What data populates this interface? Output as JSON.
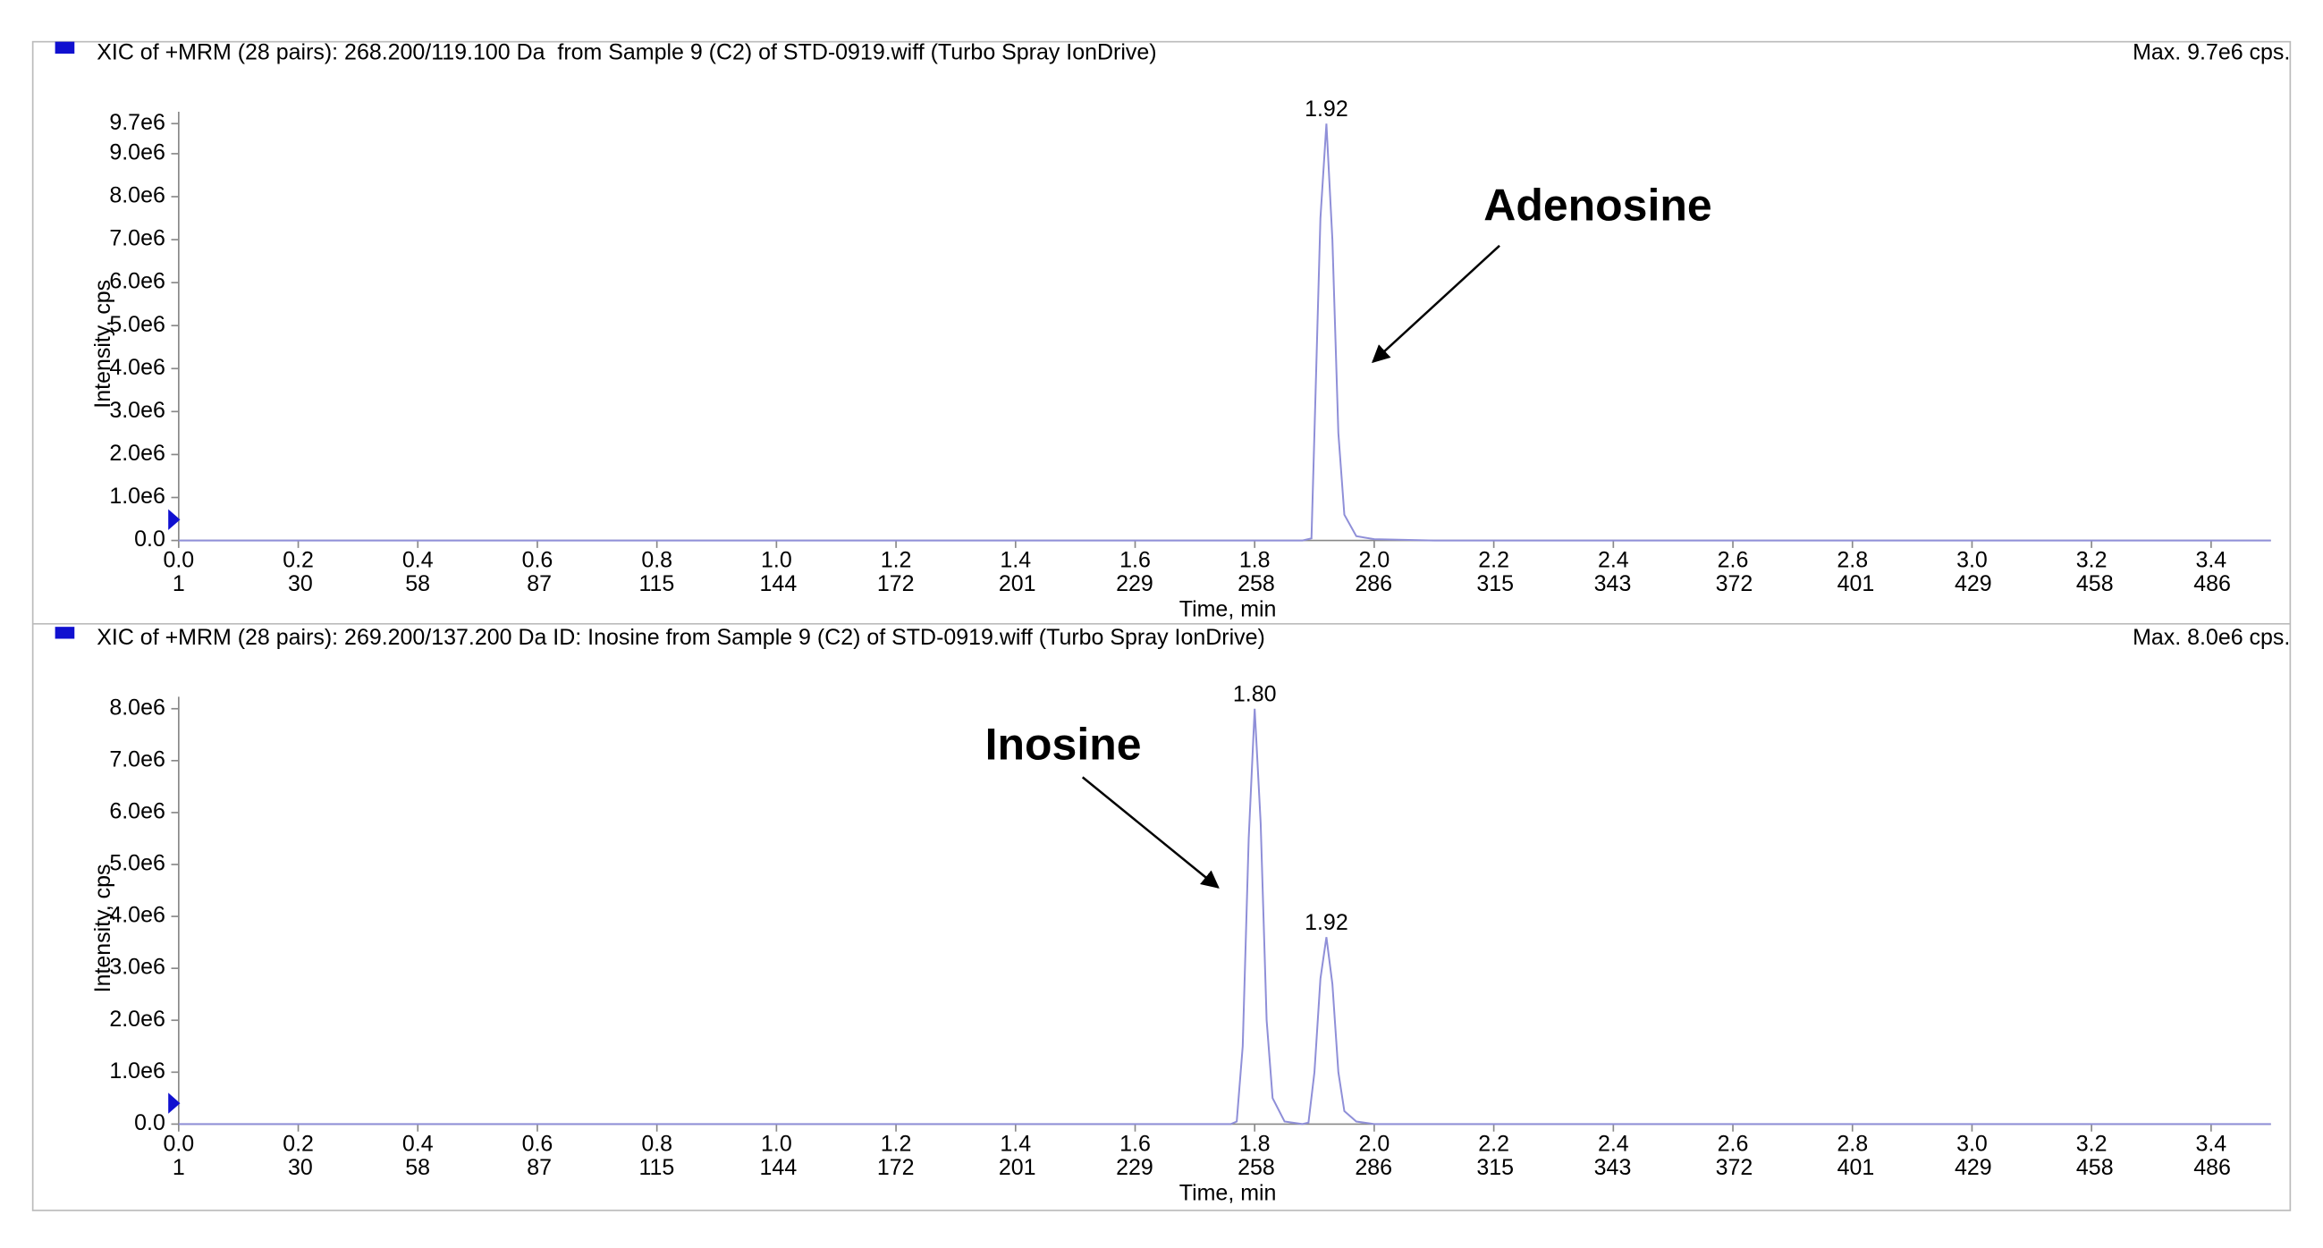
{
  "chart_data": [
    {
      "type": "line",
      "title": "XIC of +MRM (28 pairs): 268.200/119.100 Da  from Sample 9 (C2) of STD-0919.wiff (Turbo Spray IonDrive)",
      "max_label": "Max. 9.7e6 cps.",
      "x_label": "Time, min",
      "y_label": "Intensity, cps",
      "x": [
        0,
        1.85,
        1.88,
        1.895,
        1.9,
        1.91,
        1.92,
        1.93,
        1.94,
        1.95,
        1.97,
        2.0,
        2.1,
        3.5
      ],
      "series": [
        {
          "color": "#8f8fd8",
          "values": [
            0,
            0,
            0,
            50000,
            2500000,
            7500000,
            9700000,
            7000000,
            2500000,
            600000,
            100000,
            30000,
            0,
            0
          ]
        }
      ],
      "peaks": [
        {
          "x": 1.92,
          "y": 9700000,
          "label": "1.92"
        }
      ],
      "annotations": [
        {
          "text": "Adenosine"
        }
      ],
      "xlim": [
        0,
        3.5
      ],
      "xticks": [
        {
          "value": 0,
          "label": "0.0"
        },
        0.2,
        0.4,
        0.6,
        0.8,
        {
          "value": 1,
          "label": "1.0"
        },
        1.2,
        1.4,
        1.6,
        1.8,
        {
          "value": 2,
          "label": "2.0"
        },
        2.2,
        2.4,
        2.6,
        2.8,
        {
          "value": 3,
          "label": "3.0"
        },
        3.2,
        3.4
      ],
      "x2lim": [
        1,
        500
      ],
      "x2ticks": [
        1,
        30,
        58,
        87,
        115,
        144,
        172,
        201,
        229,
        258,
        286,
        315,
        343,
        372,
        401,
        429,
        458,
        486
      ],
      "ylim": [
        0,
        9700000
      ],
      "yticks": [
        {
          "value": 0,
          "label": "0.0"
        },
        {
          "value": 1000000,
          "label": "1.0e6"
        },
        {
          "value": 2000000,
          "label": "2.0e6"
        },
        {
          "value": 3000000,
          "label": "3.0e6"
        },
        {
          "value": 4000000,
          "label": "4.0e6"
        },
        {
          "value": 5000000,
          "label": "5.0e6"
        },
        {
          "value": 6000000,
          "label": "6.0e6"
        },
        {
          "value": 7000000,
          "label": "7.0e6"
        },
        {
          "value": 8000000,
          "label": "8.0e6"
        },
        {
          "value": 9000000,
          "label": "9.0e6"
        },
        {
          "value": 9700000,
          "label": "9.7e6"
        }
      ],
      "grid": false
    },
    {
      "type": "line",
      "title": "XIC of +MRM (28 pairs): 269.200/137.200 Da ID: Inosine from Sample 9 (C2) of STD-0919.wiff (Turbo Spray IonDrive)",
      "max_label": "Max. 8.0e6 cps.",
      "x_label": "Time, min",
      "y_label": "Intensity, cps",
      "x": [
        0,
        1.76,
        1.77,
        1.78,
        1.79,
        1.8,
        1.81,
        1.82,
        1.83,
        1.85,
        1.88,
        1.89,
        1.9,
        1.91,
        1.92,
        1.93,
        1.94,
        1.95,
        1.97,
        2.0,
        3.5
      ],
      "series": [
        {
          "color": "#8f8fd8",
          "values": [
            0,
            0,
            50000,
            1500000,
            5500000,
            8000000,
            5800000,
            2000000,
            500000,
            50000,
            0,
            30000,
            1000000,
            2800000,
            3600000,
            2700000,
            1000000,
            250000,
            50000,
            0,
            0
          ]
        }
      ],
      "peaks": [
        {
          "x": 1.8,
          "y": 8000000,
          "label": "1.80"
        },
        {
          "x": 1.92,
          "y": 3600000,
          "label": "1.92"
        }
      ],
      "annotations": [
        {
          "text": "Inosine"
        }
      ],
      "xlim": [
        0,
        3.5
      ],
      "xticks": [
        {
          "value": 0,
          "label": "0.0"
        },
        0.2,
        0.4,
        0.6,
        0.8,
        {
          "value": 1,
          "label": "1.0"
        },
        1.2,
        1.4,
        1.6,
        1.8,
        {
          "value": 2,
          "label": "2.0"
        },
        2.2,
        2.4,
        2.6,
        2.8,
        {
          "value": 3,
          "label": "3.0"
        },
        3.2,
        3.4
      ],
      "x2lim": [
        1,
        500
      ],
      "x2ticks": [
        1,
        30,
        58,
        87,
        115,
        144,
        172,
        201,
        229,
        258,
        286,
        315,
        343,
        372,
        401,
        429,
        458,
        486
      ],
      "ylim": [
        0,
        8000000
      ],
      "yticks": [
        {
          "value": 0,
          "label": "0.0"
        },
        {
          "value": 1000000,
          "label": "1.0e6"
        },
        {
          "value": 2000000,
          "label": "2.0e6"
        },
        {
          "value": 3000000,
          "label": "3.0e6"
        },
        {
          "value": 4000000,
          "label": "4.0e6"
        },
        {
          "value": 5000000,
          "label": "5.0e6"
        },
        {
          "value": 6000000,
          "label": "6.0e6"
        },
        {
          "value": 7000000,
          "label": "7.0e6"
        },
        {
          "value": 8000000,
          "label": "8.0e6"
        }
      ],
      "grid": false
    }
  ]
}
